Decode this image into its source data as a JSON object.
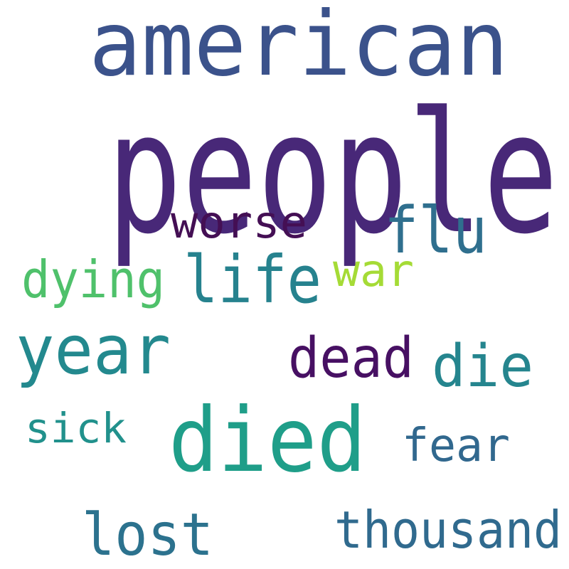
{
  "words": [
    "american",
    "people",
    "worse",
    "flu",
    "dying",
    "life",
    "war",
    "year",
    "dead",
    "die",
    "sick",
    "died",
    "fear",
    "lost",
    "thousand"
  ]
}
